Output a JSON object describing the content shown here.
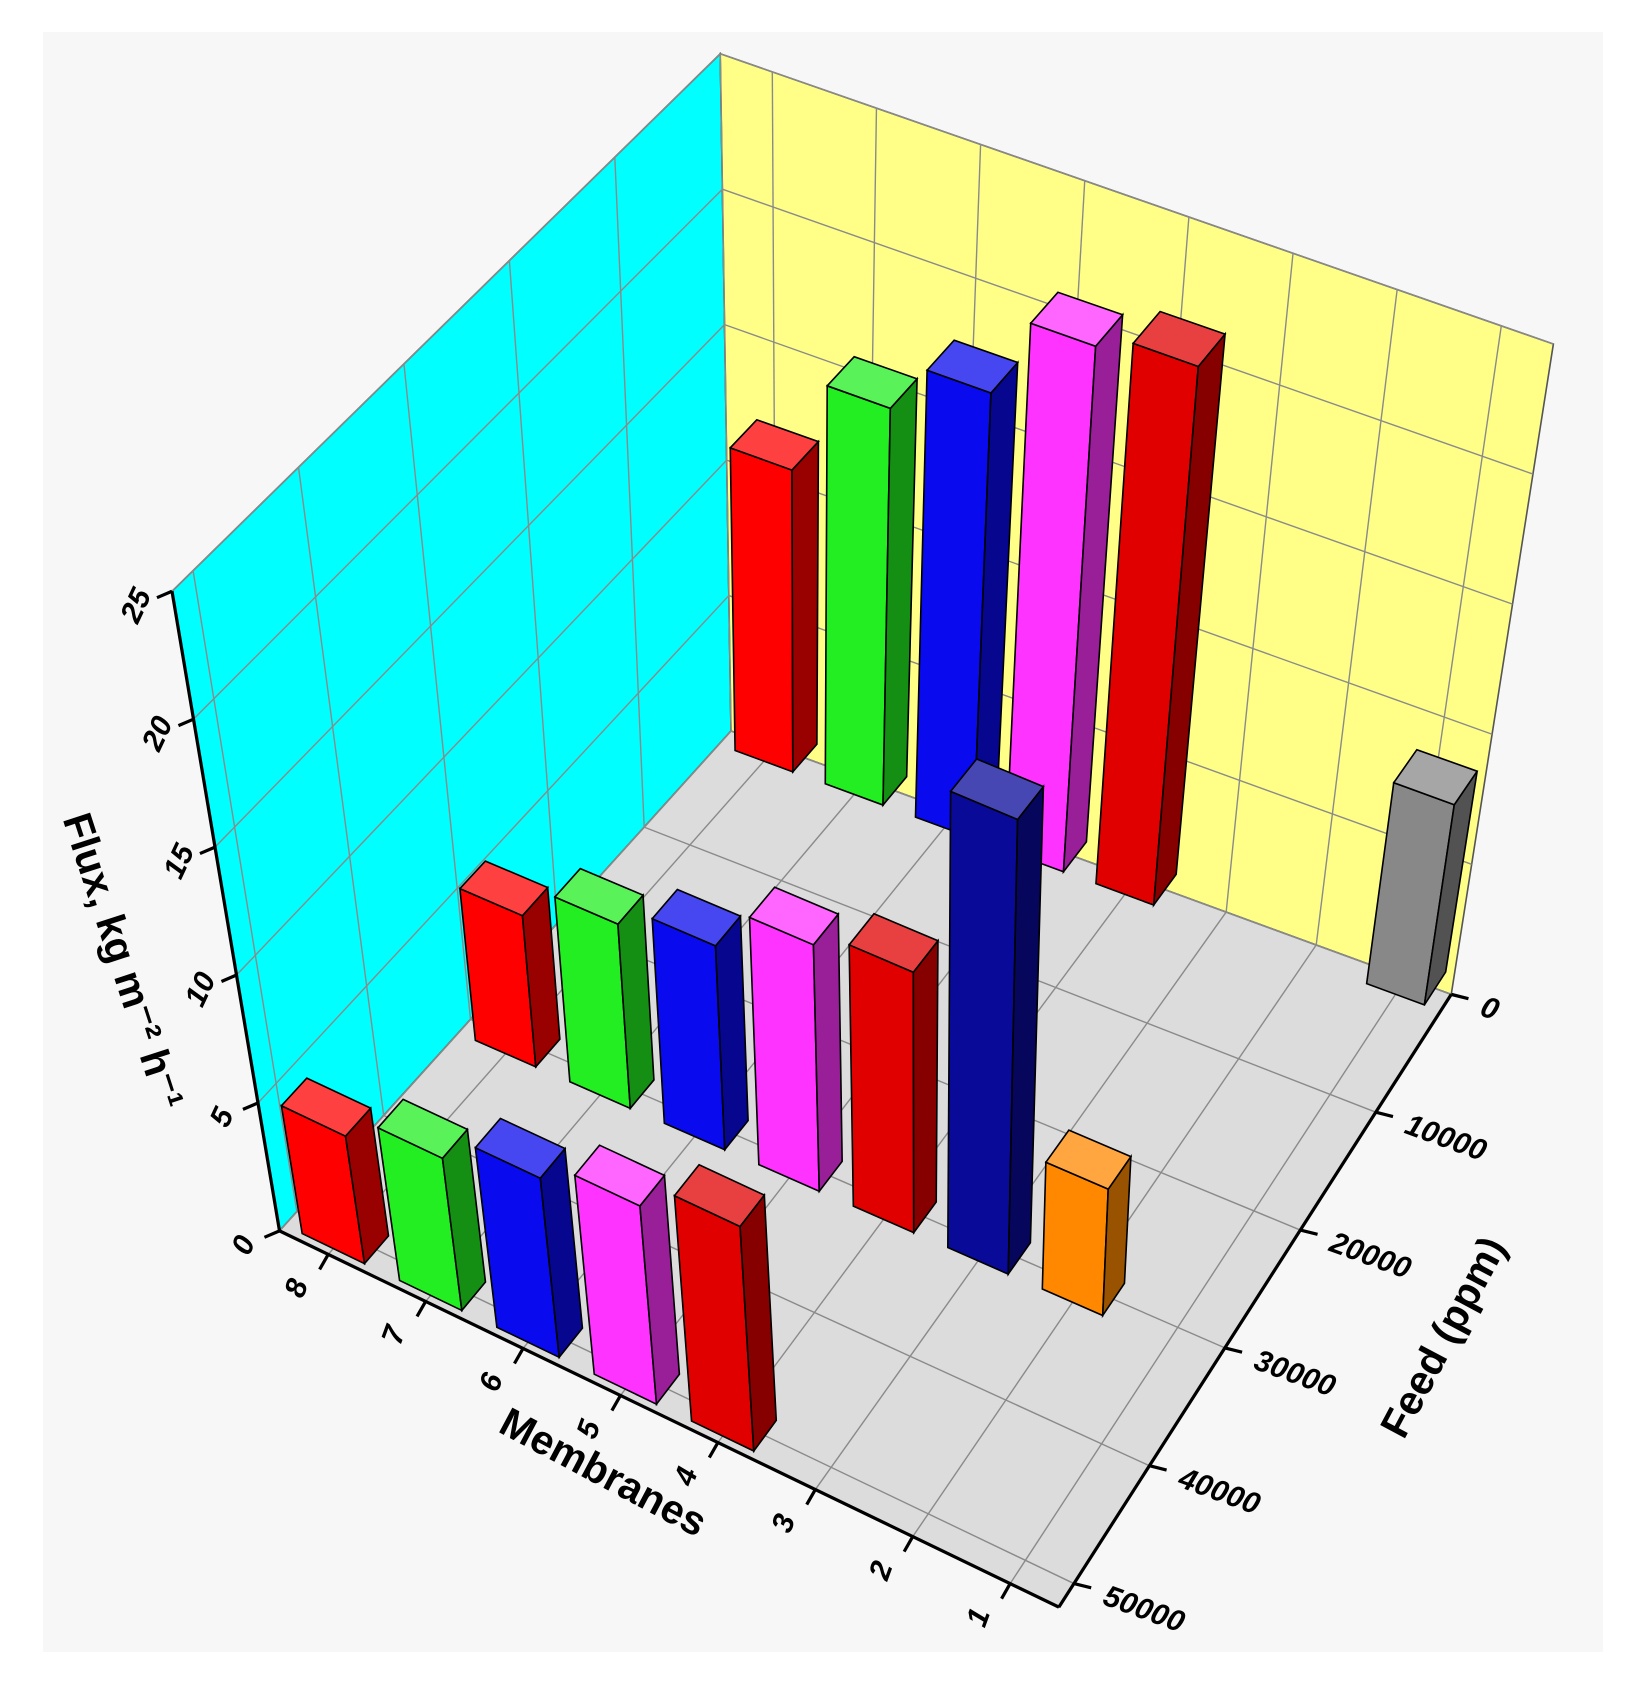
{
  "chart_data": {
    "type": "bar3d",
    "xlabel": "Membranes",
    "ylabel": "Feed (ppm)",
    "zlabel": "Flux, kg m⁻² h⁻¹",
    "xlim": [
      0.5,
      8.5
    ],
    "xticks": [
      1,
      2,
      3,
      4,
      5,
      6,
      7,
      8
    ],
    "ylim": [
      0,
      52000
    ],
    "yticks": [
      0,
      10000,
      20000,
      30000,
      40000,
      50000
    ],
    "zlim": [
      0,
      25
    ],
    "zticks": [
      0,
      5,
      10,
      15,
      20,
      25
    ],
    "grid": true,
    "wall_colors": {
      "left": "#00ffff",
      "back": "#ffff88",
      "floor": "#dcdcdc"
    },
    "bars": [
      {
        "membrane": 8,
        "feed": 0,
        "value": 11.2,
        "color": "#ff0000"
      },
      {
        "membrane": 7,
        "feed": 0,
        "value": 14.8,
        "color": "#22ee22"
      },
      {
        "membrane": 6,
        "feed": 0,
        "value": 16.7,
        "color": "#0a0aee"
      },
      {
        "membrane": 5,
        "feed": 0,
        "value": 19.8,
        "color": "#ff33ff"
      },
      {
        "membrane": 4,
        "feed": 0,
        "value": 20.4,
        "color": "#e00000"
      },
      {
        "membrane": 1,
        "feed": 0,
        "value": 7.7,
        "color": "#888888"
      },
      {
        "membrane": 8,
        "feed": 30000,
        "value": 5.8,
        "color": "#ff0000"
      },
      {
        "membrane": 7,
        "feed": 30000,
        "value": 7.1,
        "color": "#22ee22"
      },
      {
        "membrane": 6,
        "feed": 30000,
        "value": 7.9,
        "color": "#0a0aee"
      },
      {
        "membrane": 5,
        "feed": 30000,
        "value": 9.6,
        "color": "#ff33ff"
      },
      {
        "membrane": 4,
        "feed": 30000,
        "value": 10.2,
        "color": "#e00000"
      },
      {
        "membrane": 3,
        "feed": 30000,
        "value": 17.9,
        "color": "#0a0a99"
      },
      {
        "membrane": 2,
        "feed": 30000,
        "value": 5,
        "color": "#ff8800"
      },
      {
        "membrane": 8,
        "feed": 50000,
        "value": 5,
        "color": "#ff0000"
      },
      {
        "membrane": 7,
        "feed": 50000,
        "value": 6,
        "color": "#22ee22"
      },
      {
        "membrane": 6,
        "feed": 50000,
        "value": 7.1,
        "color": "#0a0aee"
      },
      {
        "membrane": 5,
        "feed": 50000,
        "value": 7.9,
        "color": "#ff33ff"
      },
      {
        "membrane": 4,
        "feed": 50000,
        "value": 9,
        "color": "#e00000"
      }
    ]
  }
}
